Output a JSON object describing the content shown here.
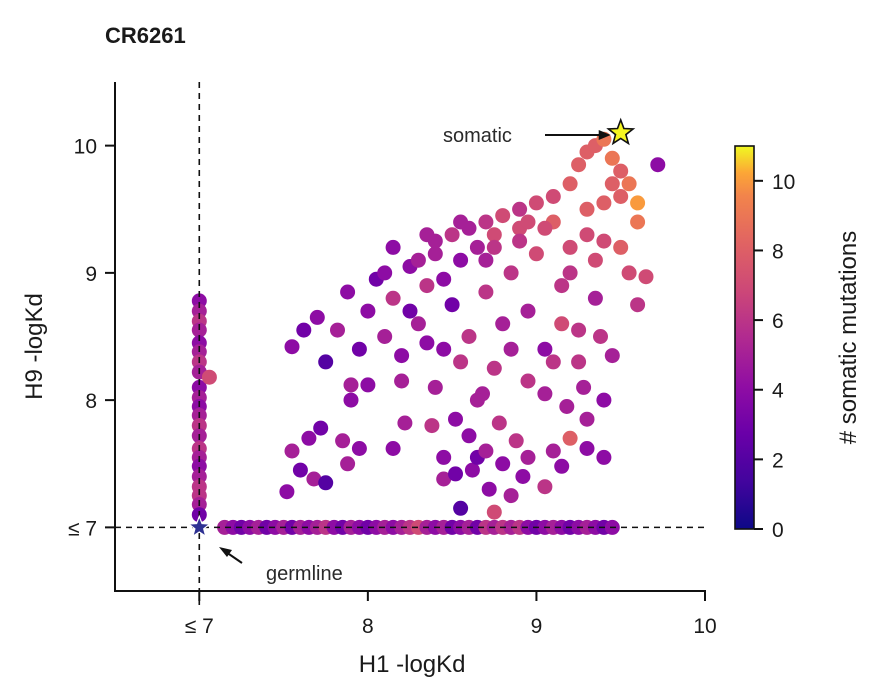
{
  "chart_data": {
    "type": "scatter",
    "title": "CR6261",
    "xlabel": "H1 -logKd",
    "ylabel": "H9 -logKd",
    "xlim": [
      6.5,
      10.0
    ],
    "ylim": [
      6.5,
      10.5
    ],
    "xticks": [
      {
        "value": 7,
        "label": "≤ 7"
      },
      {
        "value": 8,
        "label": "8"
      },
      {
        "value": 9,
        "label": "9"
      },
      {
        "value": 10,
        "label": "10"
      }
    ],
    "yticks": [
      {
        "value": 7,
        "label": "≤ 7"
      },
      {
        "value": 8,
        "label": "8"
      },
      {
        "value": 9,
        "label": "9"
      },
      {
        "value": 10,
        "label": "10"
      }
    ],
    "threshold_lines": {
      "x": 7,
      "y": 7,
      "style": "dashed"
    },
    "colorbar": {
      "label": "# somatic mutations",
      "cmap": "plasma",
      "range": [
        0,
        11
      ],
      "ticks": [
        0,
        2,
        4,
        6,
        8,
        10
      ]
    },
    "annotations": [
      {
        "text": "somatic",
        "x": 9.5,
        "y": 10.1,
        "marker": "star",
        "color": "#f5f520"
      },
      {
        "text": "germline",
        "x": 7.0,
        "y": 7.0,
        "marker": "star",
        "color": "#2e3192"
      }
    ],
    "series": [
      {
        "name": "variants",
        "columns": [
          "h1_logKd",
          "h9_logKd",
          "somatic_mutations"
        ],
        "points": [
          [
            7.0,
            8.78,
            4
          ],
          [
            7.0,
            8.7,
            5
          ],
          [
            7.0,
            8.62,
            6
          ],
          [
            7.0,
            8.55,
            5
          ],
          [
            7.0,
            8.45,
            4
          ],
          [
            7.0,
            8.38,
            5
          ],
          [
            7.0,
            8.3,
            6
          ],
          [
            7.0,
            8.22,
            5
          ],
          [
            7.0,
            8.1,
            4
          ],
          [
            7.0,
            8.02,
            5
          ],
          [
            7.0,
            7.95,
            4
          ],
          [
            7.0,
            7.88,
            5
          ],
          [
            7.0,
            7.8,
            6
          ],
          [
            7.0,
            7.72,
            5
          ],
          [
            7.0,
            7.62,
            6
          ],
          [
            7.0,
            7.55,
            5
          ],
          [
            7.0,
            7.48,
            4
          ],
          [
            7.0,
            7.4,
            5
          ],
          [
            7.0,
            7.32,
            6
          ],
          [
            7.0,
            7.25,
            6
          ],
          [
            7.0,
            7.18,
            5
          ],
          [
            7.0,
            7.1,
            3
          ],
          [
            7.06,
            8.18,
            7
          ],
          [
            7.15,
            7.0,
            5
          ],
          [
            7.2,
            7.0,
            4
          ],
          [
            7.25,
            7.0,
            3
          ],
          [
            7.3,
            7.0,
            4
          ],
          [
            7.35,
            7.0,
            5
          ],
          [
            7.4,
            7.0,
            3
          ],
          [
            7.45,
            7.0,
            4
          ],
          [
            7.5,
            7.0,
            5
          ],
          [
            7.55,
            7.0,
            3
          ],
          [
            7.6,
            7.0,
            5
          ],
          [
            7.65,
            7.0,
            4
          ],
          [
            7.7,
            7.0,
            5
          ],
          [
            7.75,
            7.0,
            6
          ],
          [
            7.8,
            7.0,
            4
          ],
          [
            7.85,
            7.0,
            3
          ],
          [
            7.9,
            7.0,
            5
          ],
          [
            7.95,
            7.0,
            4
          ],
          [
            8.0,
            7.0,
            3
          ],
          [
            8.05,
            7.0,
            4
          ],
          [
            8.1,
            7.0,
            5
          ],
          [
            8.15,
            7.0,
            4
          ],
          [
            8.2,
            7.0,
            5
          ],
          [
            8.25,
            7.0,
            6
          ],
          [
            8.3,
            7.0,
            7
          ],
          [
            8.35,
            7.0,
            5
          ],
          [
            8.4,
            7.0,
            4
          ],
          [
            8.45,
            7.0,
            5
          ],
          [
            8.5,
            7.0,
            3
          ],
          [
            8.55,
            7.0,
            4
          ],
          [
            8.6,
            7.0,
            5
          ],
          [
            8.65,
            7.0,
            3
          ],
          [
            8.7,
            7.0,
            6
          ],
          [
            8.75,
            7.0,
            5
          ],
          [
            8.8,
            7.0,
            6
          ],
          [
            8.85,
            7.0,
            5
          ],
          [
            8.9,
            7.0,
            6
          ],
          [
            8.95,
            7.0,
            4
          ],
          [
            9.0,
            7.0,
            3
          ],
          [
            9.05,
            7.0,
            4
          ],
          [
            9.1,
            7.0,
            5
          ],
          [
            9.15,
            7.0,
            4
          ],
          [
            9.2,
            7.0,
            3
          ],
          [
            9.25,
            7.0,
            4
          ],
          [
            9.3,
            7.0,
            5
          ],
          [
            9.35,
            7.0,
            4
          ],
          [
            9.4,
            7.0,
            3
          ],
          [
            9.45,
            7.0,
            4
          ],
          [
            7.52,
            7.28,
            4
          ],
          [
            7.55,
            7.6,
            5
          ],
          [
            7.6,
            7.45,
            3
          ],
          [
            7.65,
            7.7,
            4
          ],
          [
            7.68,
            7.38,
            5
          ],
          [
            7.72,
            7.78,
            3
          ],
          [
            7.75,
            7.35,
            2
          ],
          [
            7.85,
            7.68,
            5
          ],
          [
            7.88,
            7.5,
            5
          ],
          [
            7.9,
            8.0,
            4
          ],
          [
            7.95,
            7.62,
            4
          ],
          [
            8.0,
            8.12,
            4
          ],
          [
            8.15,
            7.62,
            4
          ],
          [
            8.22,
            7.82,
            5
          ],
          [
            8.38,
            7.8,
            6
          ],
          [
            8.4,
            8.1,
            5
          ],
          [
            8.45,
            7.55,
            4
          ],
          [
            8.45,
            7.38,
            5
          ],
          [
            8.52,
            7.85,
            4
          ],
          [
            8.52,
            7.42,
            3
          ],
          [
            8.55,
            7.15,
            2
          ],
          [
            8.6,
            7.72,
            4
          ],
          [
            8.62,
            7.45,
            4
          ],
          [
            8.65,
            7.55,
            3
          ],
          [
            8.68,
            8.05,
            5
          ],
          [
            8.7,
            7.6,
            5
          ],
          [
            8.72,
            7.3,
            4
          ],
          [
            8.75,
            7.12,
            7
          ],
          [
            8.78,
            7.82,
            6
          ],
          [
            8.8,
            7.5,
            4
          ],
          [
            8.85,
            7.25,
            5
          ],
          [
            8.88,
            7.68,
            6
          ],
          [
            8.92,
            7.4,
            4
          ],
          [
            8.95,
            7.55,
            5
          ],
          [
            9.05,
            7.32,
            6
          ],
          [
            9.1,
            7.6,
            5
          ],
          [
            9.15,
            7.48,
            4
          ],
          [
            9.2,
            7.7,
            8
          ],
          [
            9.3,
            7.62,
            4
          ],
          [
            9.4,
            7.55,
            4
          ],
          [
            7.55,
            8.42,
            4
          ],
          [
            7.62,
            8.55,
            3
          ],
          [
            7.7,
            8.65,
            4
          ],
          [
            7.75,
            8.3,
            2
          ],
          [
            7.82,
            8.55,
            5
          ],
          [
            7.88,
            8.85,
            4
          ],
          [
            7.9,
            8.12,
            5
          ],
          [
            7.95,
            8.4,
            3
          ],
          [
            8.0,
            8.7,
            4
          ],
          [
            8.05,
            8.95,
            3
          ],
          [
            8.1,
            8.5,
            5
          ],
          [
            8.15,
            8.8,
            6
          ],
          [
            8.2,
            8.35,
            4
          ],
          [
            8.25,
            9.05,
            4
          ],
          [
            8.3,
            8.6,
            5
          ],
          [
            8.35,
            8.9,
            6
          ],
          [
            8.4,
            9.15,
            5
          ],
          [
            8.45,
            8.4,
            4
          ],
          [
            8.5,
            8.75,
            3
          ],
          [
            8.55,
            9.1,
            4
          ],
          [
            8.6,
            8.5,
            6
          ],
          [
            8.65,
            9.2,
            5
          ],
          [
            8.7,
            8.85,
            6
          ],
          [
            8.75,
            9.3,
            7
          ],
          [
            8.8,
            8.6,
            5
          ],
          [
            8.85,
            9.0,
            6
          ],
          [
            8.9,
            9.35,
            7
          ],
          [
            8.95,
            8.7,
            5
          ],
          [
            9.0,
            9.15,
            7
          ],
          [
            9.05,
            8.4,
            4
          ],
          [
            9.1,
            9.4,
            8
          ],
          [
            9.15,
            8.9,
            6
          ],
          [
            9.2,
            9.2,
            7
          ],
          [
            9.25,
            8.55,
            6
          ],
          [
            9.3,
            9.5,
            8
          ],
          [
            9.35,
            8.8,
            5
          ],
          [
            9.4,
            9.25,
            7
          ],
          [
            9.45,
            8.35,
            5
          ],
          [
            9.5,
            9.6,
            8
          ],
          [
            9.55,
            9.0,
            7
          ],
          [
            9.6,
            8.75,
            6
          ],
          [
            9.6,
            9.4,
            9
          ],
          [
            9.65,
            8.97,
            7
          ],
          [
            8.1,
            9.0,
            4
          ],
          [
            8.3,
            9.1,
            5
          ],
          [
            8.4,
            9.25,
            5
          ],
          [
            8.5,
            9.3,
            6
          ],
          [
            8.6,
            9.35,
            5
          ],
          [
            8.7,
            9.4,
            6
          ],
          [
            8.8,
            9.45,
            7
          ],
          [
            8.9,
            9.5,
            6
          ],
          [
            9.0,
            9.55,
            7
          ],
          [
            9.1,
            9.6,
            7
          ],
          [
            9.2,
            9.7,
            8
          ],
          [
            9.25,
            9.85,
            8
          ],
          [
            9.3,
            9.95,
            8
          ],
          [
            9.35,
            10.0,
            8
          ],
          [
            9.4,
            10.05,
            9
          ],
          [
            9.45,
            9.9,
            9
          ],
          [
            9.5,
            9.8,
            8
          ],
          [
            9.55,
            9.7,
            9
          ],
          [
            9.6,
            9.55,
            10
          ],
          [
            9.3,
            9.3,
            7
          ],
          [
            9.4,
            9.55,
            8
          ],
          [
            9.45,
            9.7,
            8
          ],
          [
            9.2,
            9.0,
            6
          ],
          [
            9.35,
            9.1,
            7
          ],
          [
            9.5,
            9.2,
            8
          ],
          [
            9.25,
            8.3,
            6
          ],
          [
            9.38,
            8.5,
            6
          ],
          [
            9.28,
            8.1,
            5
          ],
          [
            9.18,
            7.95,
            5
          ],
          [
            9.4,
            8.0,
            4
          ],
          [
            9.3,
            7.85,
            5
          ],
          [
            9.72,
            9.85,
            4
          ],
          [
            8.2,
            8.15,
            5
          ],
          [
            8.35,
            8.45,
            4
          ],
          [
            8.55,
            8.3,
            6
          ],
          [
            8.65,
            8.0,
            5
          ],
          [
            8.75,
            8.25,
            6
          ],
          [
            8.85,
            8.4,
            5
          ],
          [
            8.95,
            8.15,
            6
          ],
          [
            9.05,
            8.05,
            5
          ],
          [
            9.1,
            8.3,
            6
          ],
          [
            9.15,
            8.6,
            7
          ],
          [
            8.25,
            8.7,
            3
          ],
          [
            8.45,
            8.95,
            4
          ],
          [
            8.7,
            9.1,
            5
          ],
          [
            8.9,
            9.25,
            6
          ],
          [
            9.05,
            9.35,
            7
          ],
          [
            8.15,
            9.2,
            4
          ],
          [
            8.35,
            9.3,
            5
          ],
          [
            8.55,
            9.4,
            5
          ],
          [
            8.75,
            9.2,
            6
          ],
          [
            8.95,
            9.4,
            7
          ]
        ]
      }
    ]
  }
}
